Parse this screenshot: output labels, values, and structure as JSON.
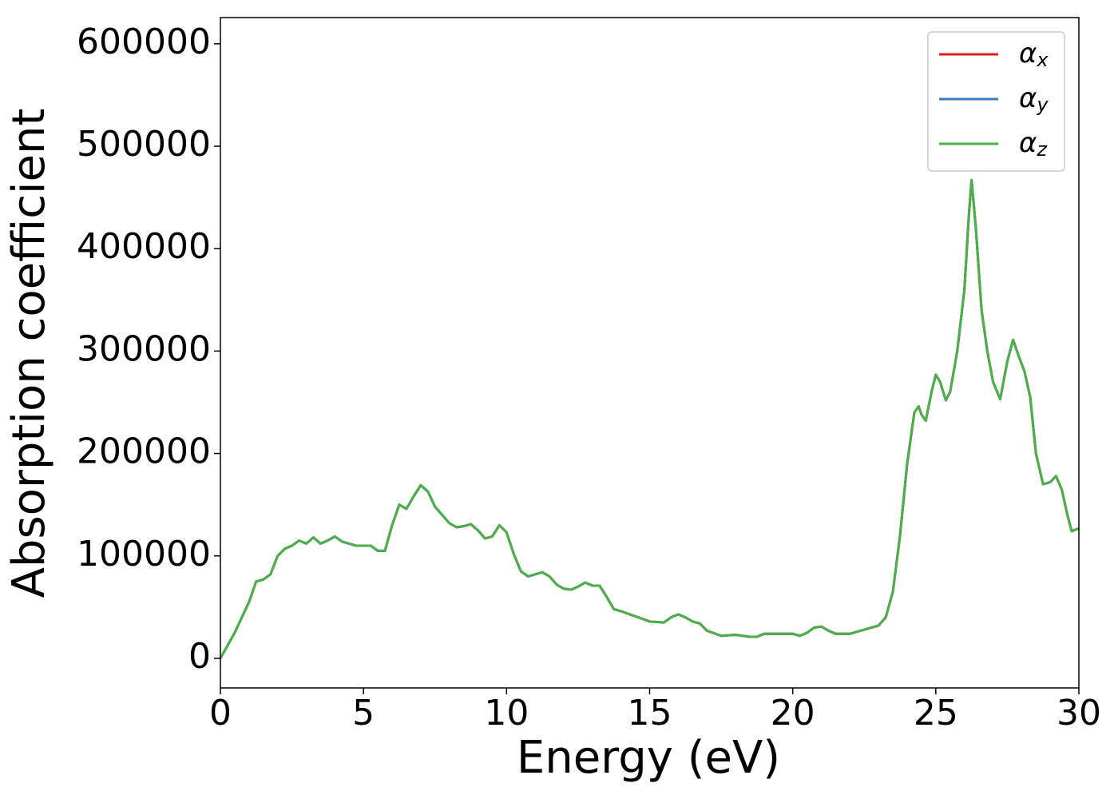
{
  "chart_data": {
    "type": "line",
    "xlabel": "Energy (eV)",
    "ylabel": "Absorption coefficient",
    "x": [
      0,
      0.5,
      1.0,
      1.25,
      1.5,
      1.75,
      2.0,
      2.25,
      2.5,
      2.75,
      3.0,
      3.25,
      3.5,
      3.75,
      4.0,
      4.25,
      4.5,
      4.75,
      5.0,
      5.25,
      5.5,
      5.75,
      6.0,
      6.25,
      6.5,
      6.75,
      7.0,
      7.25,
      7.5,
      7.75,
      8.0,
      8.25,
      8.5,
      8.75,
      9.0,
      9.25,
      9.5,
      9.75,
      10.0,
      10.25,
      10.5,
      10.75,
      11.0,
      11.25,
      11.5,
      11.75,
      12.0,
      12.25,
      12.5,
      12.75,
      13.0,
      13.25,
      13.5,
      13.75,
      14.0,
      14.5,
      15.0,
      15.5,
      15.75,
      16.0,
      16.25,
      16.5,
      16.75,
      17.0,
      17.5,
      18.0,
      18.5,
      18.75,
      19.0,
      19.5,
      20.0,
      20.25,
      20.5,
      20.75,
      21.0,
      21.25,
      21.5,
      22.0,
      22.5,
      23.0,
      23.25,
      23.5,
      23.75,
      24.0,
      24.25,
      24.4,
      24.5,
      24.65,
      24.85,
      25.0,
      25.15,
      25.35,
      25.5,
      25.75,
      26.0,
      26.15,
      26.25,
      26.4,
      26.6,
      26.8,
      27.0,
      27.25,
      27.5,
      27.7,
      27.9,
      28.1,
      28.3,
      28.5,
      28.75,
      29.0,
      29.2,
      29.4,
      29.6,
      29.75,
      30.0
    ],
    "series": [
      {
        "name": "αx",
        "color": "#e41a1c",
        "values": [
          0,
          25000,
          55000,
          75000,
          77000,
          82000,
          100000,
          107000,
          110000,
          115000,
          112000,
          118000,
          112000,
          115000,
          119000,
          114000,
          112000,
          110000,
          110000,
          110000,
          105000,
          105000,
          130000,
          150000,
          146000,
          158000,
          169000,
          163000,
          148000,
          140000,
          132000,
          128000,
          129000,
          131000,
          125000,
          117000,
          119000,
          130000,
          123000,
          102000,
          85000,
          80000,
          82000,
          84000,
          80000,
          72000,
          68000,
          67000,
          70000,
          74000,
          71000,
          71000,
          60000,
          48000,
          46000,
          41000,
          36000,
          35000,
          40000,
          43000,
          40000,
          36000,
          34000,
          27000,
          22000,
          23000,
          21000,
          21000,
          24000,
          24000,
          24000,
          22000,
          25000,
          30000,
          31000,
          27000,
          24000,
          24000,
          28000,
          32000,
          40000,
          65000,
          120000,
          190000,
          240000,
          246000,
          238000,
          232000,
          260000,
          277000,
          270000,
          252000,
          260000,
          300000,
          360000,
          430000,
          467000,
          420000,
          340000,
          300000,
          270000,
          253000,
          290000,
          311000,
          295000,
          280000,
          255000,
          200000,
          170000,
          172000,
          178000,
          165000,
          140000,
          124000,
          127000
        ]
      },
      {
        "name": "αy",
        "color": "#377eb8",
        "values": [
          0,
          25000,
          55000,
          75000,
          77000,
          82000,
          100000,
          107000,
          110000,
          115000,
          112000,
          118000,
          112000,
          115000,
          119000,
          114000,
          112000,
          110000,
          110000,
          110000,
          105000,
          105000,
          130000,
          150000,
          146000,
          158000,
          169000,
          163000,
          148000,
          140000,
          132000,
          128000,
          129000,
          131000,
          125000,
          117000,
          119000,
          130000,
          123000,
          102000,
          85000,
          80000,
          82000,
          84000,
          80000,
          72000,
          68000,
          67000,
          70000,
          74000,
          71000,
          71000,
          60000,
          48000,
          46000,
          41000,
          36000,
          35000,
          40000,
          43000,
          40000,
          36000,
          34000,
          27000,
          22000,
          23000,
          21000,
          21000,
          24000,
          24000,
          24000,
          22000,
          25000,
          30000,
          31000,
          27000,
          24000,
          24000,
          28000,
          32000,
          40000,
          65000,
          120000,
          190000,
          240000,
          246000,
          238000,
          232000,
          260000,
          277000,
          270000,
          252000,
          260000,
          300000,
          360000,
          430000,
          467000,
          420000,
          340000,
          300000,
          270000,
          253000,
          290000,
          311000,
          295000,
          280000,
          255000,
          200000,
          170000,
          172000,
          178000,
          165000,
          140000,
          124000,
          127000
        ]
      },
      {
        "name": "αz",
        "color": "#4daf4a",
        "values": [
          0,
          25000,
          55000,
          75000,
          77000,
          82000,
          100000,
          107000,
          110000,
          115000,
          112000,
          118000,
          112000,
          115000,
          119000,
          114000,
          112000,
          110000,
          110000,
          110000,
          105000,
          105000,
          130000,
          150000,
          146000,
          158000,
          169000,
          163000,
          148000,
          140000,
          132000,
          128000,
          129000,
          131000,
          125000,
          117000,
          119000,
          130000,
          123000,
          102000,
          85000,
          80000,
          82000,
          84000,
          80000,
          72000,
          68000,
          67000,
          70000,
          74000,
          71000,
          71000,
          60000,
          48000,
          46000,
          41000,
          36000,
          35000,
          40000,
          43000,
          40000,
          36000,
          34000,
          27000,
          22000,
          23000,
          21000,
          21000,
          24000,
          24000,
          24000,
          22000,
          25000,
          30000,
          31000,
          27000,
          24000,
          24000,
          28000,
          32000,
          40000,
          65000,
          120000,
          190000,
          240000,
          246000,
          238000,
          232000,
          260000,
          277000,
          270000,
          252000,
          260000,
          300000,
          360000,
          430000,
          467000,
          420000,
          340000,
          300000,
          270000,
          253000,
          290000,
          311000,
          295000,
          280000,
          255000,
          200000,
          170000,
          172000,
          178000,
          165000,
          140000,
          124000,
          127000
        ]
      }
    ],
    "xlim": [
      0,
      30
    ],
    "xticks": [
      0,
      5,
      10,
      15,
      20,
      25,
      30
    ],
    "ylim": [
      -28900,
      625600
    ],
    "yticks": [
      0,
      100000,
      200000,
      300000,
      400000,
      500000,
      600000
    ],
    "legend": "upper right",
    "grid": false
  }
}
